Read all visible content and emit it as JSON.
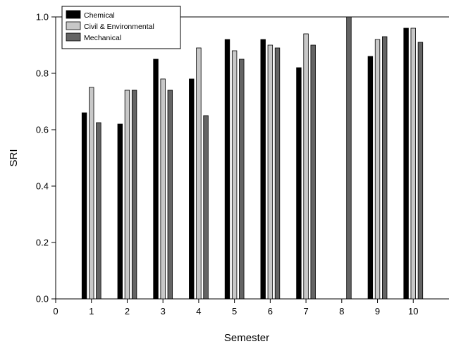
{
  "chart_data": {
    "type": "bar",
    "title": "",
    "xlabel": "Semester",
    "ylabel": "SRI",
    "x_ticks": [
      "0",
      "1",
      "2",
      "3",
      "4",
      "5",
      "6",
      "7",
      "8",
      "9",
      "10"
    ],
    "y_ticks": [
      "0.0",
      "0.2",
      "0.4",
      "0.6",
      "0.8",
      "1.0"
    ],
    "ylim": [
      0,
      1.0
    ],
    "xlim": [
      0,
      11
    ],
    "categories": [
      "1",
      "2",
      "3",
      "4",
      "5",
      "6",
      "7",
      "8",
      "9",
      "10"
    ],
    "grid": false,
    "legend_position": "top-left",
    "series": [
      {
        "name": "Chemical",
        "color": "#000000",
        "values": [
          0.66,
          0.62,
          0.85,
          0.78,
          0.92,
          0.92,
          0.82,
          null,
          0.86,
          0.96
        ]
      },
      {
        "name": "Civil & Environmental",
        "color": "#c8c8c8",
        "values": [
          0.75,
          0.74,
          0.78,
          0.89,
          0.88,
          0.9,
          0.94,
          null,
          0.92,
          0.96
        ]
      },
      {
        "name": "Mechanical",
        "color": "#646464",
        "values": [
          0.625,
          0.74,
          0.74,
          0.65,
          0.85,
          0.89,
          0.9,
          1.0,
          0.93,
          0.91
        ]
      }
    ]
  }
}
